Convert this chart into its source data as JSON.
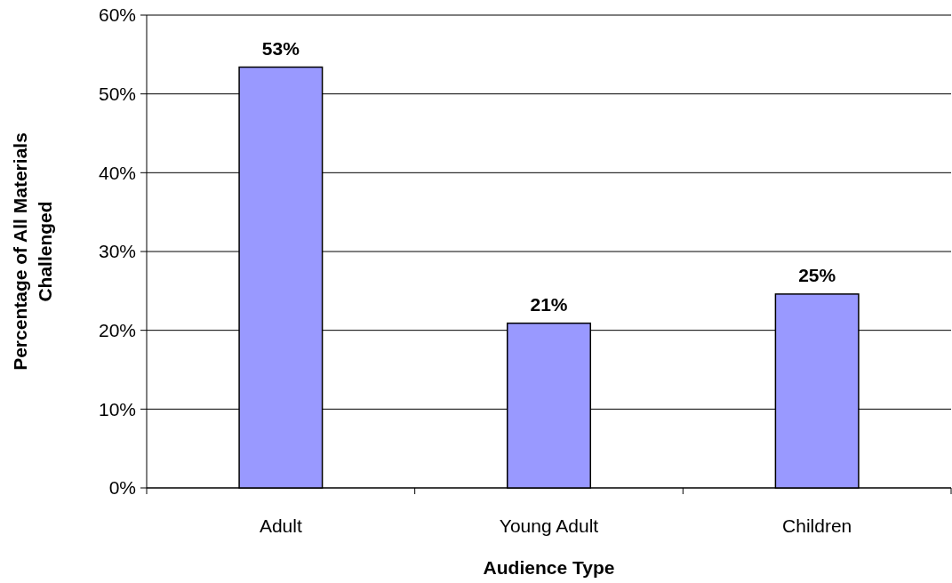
{
  "chart_data": {
    "type": "bar",
    "xlabel": "Audience Type",
    "ylabel": "Percentage of All Materials Challenged",
    "categories": [
      "Adult",
      "Young Adult",
      "Children"
    ],
    "values": [
      53.4,
      20.9,
      24.6
    ],
    "color": "#9999ff",
    "value_labels": [
      "53%",
      "21%",
      "25%"
    ],
    "ylim": [
      0,
      60
    ],
    "yticks": [
      {
        "value": 0,
        "label": "0%"
      },
      {
        "value": 10,
        "label": "10%"
      },
      {
        "value": 20,
        "label": "20%"
      },
      {
        "value": 30,
        "label": "30%"
      },
      {
        "value": 40,
        "label": "40%"
      },
      {
        "value": 50,
        "label": "50%"
      },
      {
        "value": 60,
        "label": "60%"
      }
    ],
    "grid": "y"
  }
}
